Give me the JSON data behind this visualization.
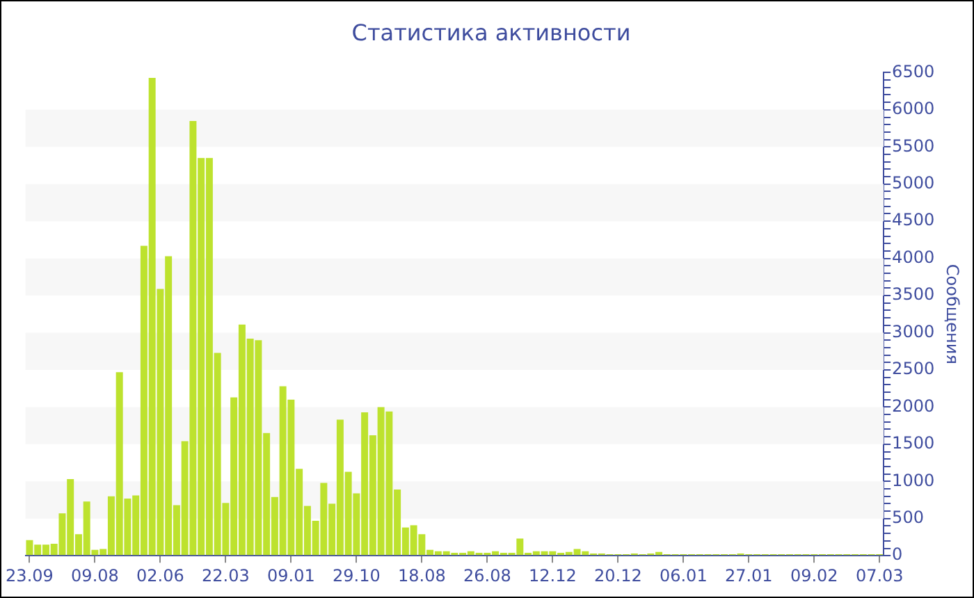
{
  "chart_data": {
    "type": "bar",
    "title": "Статистика активности",
    "ylabel": "Сообщения",
    "categories": [
      "23.09",
      null,
      null,
      null,
      null,
      null,
      null,
      null,
      "09.08",
      null,
      null,
      null,
      null,
      null,
      null,
      null,
      "02.06",
      null,
      null,
      null,
      null,
      null,
      null,
      null,
      "22.03",
      null,
      null,
      null,
      null,
      null,
      null,
      null,
      "09.01",
      null,
      null,
      null,
      null,
      null,
      null,
      null,
      "29.10",
      null,
      null,
      null,
      null,
      null,
      null,
      null,
      "18.08",
      null,
      null,
      null,
      null,
      null,
      null,
      null,
      "26.08",
      null,
      null,
      null,
      null,
      null,
      null,
      null,
      "12.12",
      null,
      null,
      null,
      null,
      null,
      null,
      null,
      "20.12",
      null,
      null,
      null,
      null,
      null,
      null,
      null,
      "06.01",
      null,
      null,
      null,
      null,
      null,
      null,
      null,
      "27.01",
      null,
      null,
      null,
      null,
      null,
      null,
      null,
      "09.02",
      null,
      null,
      null,
      null,
      null,
      null,
      null,
      "07.03"
    ],
    "values": [
      210,
      150,
      150,
      160,
      570,
      1030,
      290,
      730,
      80,
      90,
      800,
      2470,
      770,
      810,
      4170,
      6430,
      3590,
      4030,
      680,
      1540,
      5850,
      5350,
      5350,
      2730,
      710,
      2130,
      3110,
      2920,
      2900,
      1650,
      790,
      2280,
      2100,
      1170,
      670,
      470,
      980,
      700,
      1830,
      1130,
      840,
      1930,
      1620,
      2000,
      1940,
      890,
      380,
      410,
      290,
      80,
      60,
      60,
      40,
      40,
      60,
      40,
      40,
      60,
      40,
      40,
      230,
      40,
      60,
      60,
      60,
      40,
      50,
      90,
      60,
      30,
      30,
      20,
      20,
      20,
      30,
      20,
      30,
      50,
      20,
      20,
      20,
      20,
      20,
      20,
      20,
      20,
      20,
      30,
      20,
      20,
      20,
      20,
      20,
      20,
      20,
      20,
      20,
      20,
      20,
      20,
      20,
      20,
      20,
      20,
      20
    ],
    "color": "#bde22e",
    "ylim": [
      0,
      6500
    ],
    "yticks": [
      0,
      {
        "value": 100,
        "label": null
      },
      {
        "value": 200,
        "label": null
      },
      {
        "value": 300,
        "label": null
      },
      {
        "value": 400,
        "label": null
      },
      500,
      {
        "value": 600,
        "label": null
      },
      {
        "value": 700,
        "label": null
      },
      {
        "value": 800,
        "label": null
      },
      {
        "value": 900,
        "label": null
      },
      1000,
      {
        "value": 1100,
        "label": null
      },
      {
        "value": 1200,
        "label": null
      },
      {
        "value": 1300,
        "label": null
      },
      {
        "value": 1400,
        "label": null
      },
      1500,
      {
        "value": 1600,
        "label": null
      },
      {
        "value": 1700,
        "label": null
      },
      {
        "value": 1800,
        "label": null
      },
      {
        "value": 1900,
        "label": null
      },
      2000,
      {
        "value": 2100,
        "label": null
      },
      {
        "value": 2200,
        "label": null
      },
      {
        "value": 2300,
        "label": null
      },
      {
        "value": 2400,
        "label": null
      },
      2500,
      {
        "value": 2600,
        "label": null
      },
      {
        "value": 2700,
        "label": null
      },
      {
        "value": 2800,
        "label": null
      },
      {
        "value": 2900,
        "label": null
      },
      3000,
      {
        "value": 3100,
        "label": null
      },
      {
        "value": 3200,
        "label": null
      },
      {
        "value": 3300,
        "label": null
      },
      {
        "value": 3400,
        "label": null
      },
      3500,
      {
        "value": 3600,
        "label": null
      },
      {
        "value": 3700,
        "label": null
      },
      {
        "value": 3800,
        "label": null
      },
      {
        "value": 3900,
        "label": null
      },
      4000,
      {
        "value": 4100,
        "label": null
      },
      {
        "value": 4200,
        "label": null
      },
      {
        "value": 4300,
        "label": null
      },
      {
        "value": 4400,
        "label": null
      },
      4500,
      {
        "value": 4600,
        "label": null
      },
      {
        "value": 4700,
        "label": null
      },
      {
        "value": 4800,
        "label": null
      },
      {
        "value": 4900,
        "label": null
      },
      5000,
      {
        "value": 5100,
        "label": null
      },
      {
        "value": 5200,
        "label": null
      },
      {
        "value": 5300,
        "label": null
      },
      {
        "value": 5400,
        "label": null
      },
      5500,
      {
        "value": 5600,
        "label": null
      },
      {
        "value": 5700,
        "label": null
      },
      {
        "value": 5800,
        "label": null
      },
      {
        "value": 5900,
        "label": null
      },
      6000,
      {
        "value": 6100,
        "label": null
      },
      {
        "value": 6200,
        "label": null
      },
      {
        "value": 6300,
        "label": null
      },
      {
        "value": 6400,
        "label": null
      },
      6500
    ],
    "bands": [
      {
        "axis": "y",
        "from": 500,
        "to": 1000,
        "color": "#f7f7f7"
      },
      {
        "axis": "y",
        "from": 1500,
        "to": 2000,
        "color": "#f7f7f7"
      },
      {
        "axis": "y",
        "from": 2500,
        "to": 3000,
        "color": "#f7f7f7"
      },
      {
        "axis": "y",
        "from": 3500,
        "to": 4000,
        "color": "#f7f7f7"
      },
      {
        "axis": "y",
        "from": 4500,
        "to": 5000,
        "color": "#f7f7f7"
      },
      {
        "axis": "y",
        "from": 5500,
        "to": 6000,
        "color": "#f7f7f7"
      }
    ],
    "legend": false
  }
}
